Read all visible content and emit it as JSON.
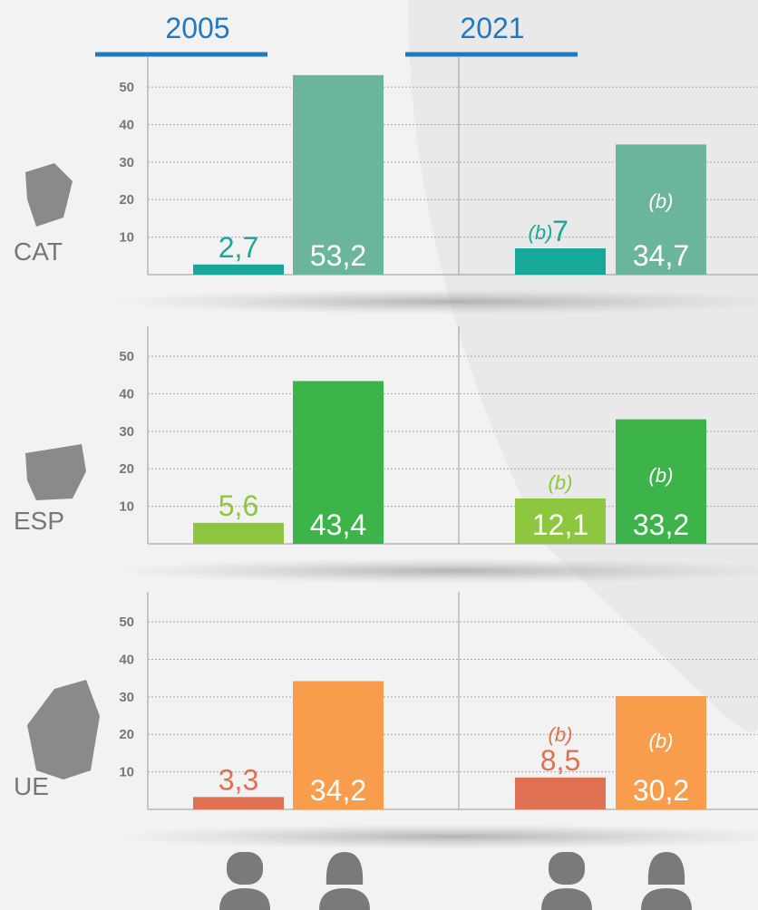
{
  "years": [
    "2005",
    "2021"
  ],
  "chart_data": [
    {
      "type": "bar",
      "title": "CAT",
      "ylim": [
        0,
        58
      ],
      "yticks": [
        10,
        20,
        30,
        40,
        50
      ],
      "grid": true,
      "series": [
        {
          "color": "#17a899",
          "values": [
            2.7,
            7
          ],
          "value_labels": [
            "2,7",
            "7"
          ],
          "value_notes": [
            null,
            "(b)"
          ]
        },
        {
          "color": "#6bb59c",
          "values": [
            53.2,
            34.7
          ],
          "value_labels": [
            "53,2",
            "34,7"
          ],
          "value_notes": [
            null,
            "(b)"
          ]
        }
      ]
    },
    {
      "type": "bar",
      "title": "ESP",
      "ylim": [
        0,
        58
      ],
      "yticks": [
        10,
        20,
        30,
        40,
        50
      ],
      "grid": true,
      "series": [
        {
          "color": "#8dc63f",
          "values": [
            5.6,
            12.1
          ],
          "value_labels": [
            "5,6",
            "12,1"
          ],
          "value_notes": [
            null,
            "(b)"
          ]
        },
        {
          "color": "#3cb44a",
          "values": [
            43.4,
            33.2
          ],
          "value_labels": [
            "43,4",
            "33,2"
          ],
          "value_notes": [
            null,
            "(b)"
          ]
        }
      ]
    },
    {
      "type": "bar",
      "title": "UE",
      "ylim": [
        0,
        58
      ],
      "yticks": [
        10,
        20,
        30,
        40,
        50
      ],
      "grid": true,
      "series": [
        {
          "color": "#e07052",
          "values": [
            3.3,
            8.5
          ],
          "value_labels": [
            "3,3",
            "8,5"
          ],
          "value_notes": [
            null,
            "(b)"
          ]
        },
        {
          "color": "#f79d4c",
          "values": [
            34.2,
            30.2
          ],
          "value_labels": [
            "34,2",
            "30,2"
          ],
          "value_notes": [
            null,
            "(b)"
          ]
        }
      ]
    }
  ]
}
